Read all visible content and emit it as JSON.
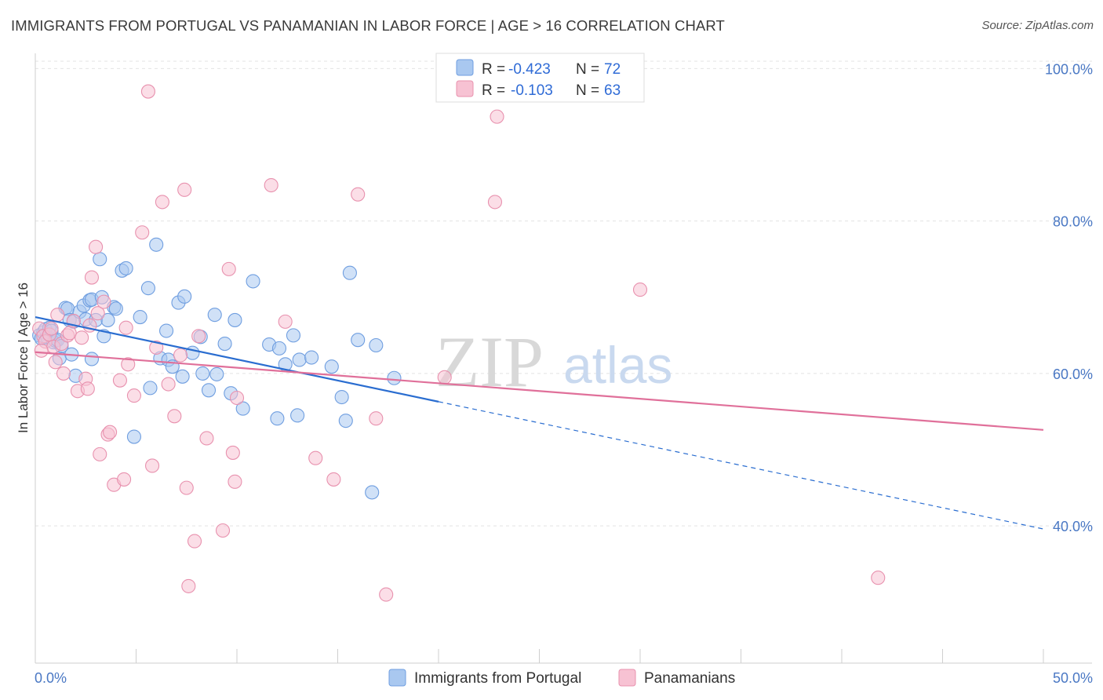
{
  "title": "IMMIGRANTS FROM PORTUGAL VS PANAMANIAN IN LABOR FORCE | AGE > 16 CORRELATION CHART",
  "source": "Source: ZipAtlas.com",
  "watermark": {
    "zip": "ZIP",
    "atlas": "atlas"
  },
  "legend_top": {
    "rows": [
      {
        "r_label": "R =",
        "r_value": "-0.423",
        "n_label": "N =",
        "n_value": "72",
        "color": "#a9c8f0",
        "stroke": "#6f9ee0"
      },
      {
        "r_label": "R =",
        "r_value": "-0.103",
        "n_label": "N =",
        "n_value": "63",
        "color": "#f7c2d3",
        "stroke": "#e891ae"
      }
    ]
  },
  "chart_data": {
    "type": "scatter",
    "title": "IMMIGRANTS FROM PORTUGAL VS PANAMANIAN IN LABOR FORCE | AGE > 16 CORRELATION CHART",
    "xlabel": "",
    "ylabel": "In Labor Force | Age > 16",
    "xlim": [
      0,
      50
    ],
    "ylim": [
      22,
      102
    ],
    "x_tick_labels": [
      "0.0%",
      "50.0%"
    ],
    "y_ticks": [
      40,
      60,
      80,
      100
    ],
    "y_tick_labels": [
      "40.0%",
      "60.0%",
      "80.0%",
      "100.0%"
    ],
    "grid": true,
    "legend_position": "bottom",
    "series": [
      {
        "name": "Immigrants from Portugal",
        "color": "#6f9ee0",
        "fill": "#a9c8f0",
        "trend": {
          "x": [
            0,
            20
          ],
          "y": [
            67.4,
            56.3
          ],
          "dashed_to": [
            50,
            39.6
          ],
          "color": "#2a6dd0"
        },
        "points": [
          [
            0.2,
            65.0
          ],
          [
            0.3,
            64.6
          ],
          [
            0.4,
            65.4
          ],
          [
            0.5,
            65.8
          ],
          [
            0.6,
            64.7
          ],
          [
            0.7,
            66.0
          ],
          [
            0.8,
            65.6
          ],
          [
            0.9,
            64.1
          ],
          [
            1.0,
            64.3
          ],
          [
            1.1,
            64.4
          ],
          [
            1.2,
            62.0
          ],
          [
            1.3,
            63.6
          ],
          [
            1.5,
            68.6
          ],
          [
            1.6,
            68.5
          ],
          [
            1.7,
            67.0
          ],
          [
            1.8,
            62.5
          ],
          [
            1.9,
            66.8
          ],
          [
            2.0,
            59.7
          ],
          [
            2.2,
            68.1
          ],
          [
            2.4,
            68.9
          ],
          [
            2.5,
            67.1
          ],
          [
            2.7,
            69.6
          ],
          [
            2.8,
            69.7
          ],
          [
            2.8,
            61.9
          ],
          [
            3.0,
            67.0
          ],
          [
            3.2,
            75.0
          ],
          [
            3.3,
            70.0
          ],
          [
            3.4,
            64.9
          ],
          [
            3.6,
            67.0
          ],
          [
            3.9,
            68.7
          ],
          [
            4.0,
            68.5
          ],
          [
            4.3,
            73.5
          ],
          [
            4.5,
            73.8
          ],
          [
            4.9,
            51.7
          ],
          [
            5.2,
            67.4
          ],
          [
            5.6,
            71.2
          ],
          [
            5.7,
            58.1
          ],
          [
            6.0,
            76.9
          ],
          [
            6.2,
            62.0
          ],
          [
            6.5,
            65.6
          ],
          [
            6.6,
            61.8
          ],
          [
            6.8,
            60.9
          ],
          [
            7.1,
            69.3
          ],
          [
            7.3,
            59.6
          ],
          [
            7.4,
            70.1
          ],
          [
            7.8,
            62.7
          ],
          [
            8.2,
            64.8
          ],
          [
            8.3,
            60.0
          ],
          [
            8.6,
            57.8
          ],
          [
            8.9,
            67.7
          ],
          [
            9.0,
            59.9
          ],
          [
            9.4,
            63.9
          ],
          [
            9.7,
            57.4
          ],
          [
            9.9,
            67.0
          ],
          [
            10.3,
            55.4
          ],
          [
            10.8,
            72.1
          ],
          [
            11.6,
            63.8
          ],
          [
            12.0,
            54.1
          ],
          [
            12.1,
            63.3
          ],
          [
            12.4,
            61.2
          ],
          [
            12.8,
            65.0
          ],
          [
            13.0,
            54.5
          ],
          [
            13.1,
            61.8
          ],
          [
            13.7,
            62.1
          ],
          [
            14.7,
            60.9
          ],
          [
            15.2,
            56.9
          ],
          [
            15.4,
            53.8
          ],
          [
            15.6,
            73.2
          ],
          [
            16.0,
            64.4
          ],
          [
            16.7,
            44.4
          ],
          [
            16.9,
            63.7
          ],
          [
            17.8,
            59.4
          ]
        ]
      },
      {
        "name": "Panamanians",
        "color": "#e891ae",
        "fill": "#f7c2d3",
        "trend": {
          "x": [
            0,
            50
          ],
          "y": [
            62.8,
            52.6
          ],
          "color": "#e0709a"
        },
        "points": [
          [
            0.2,
            65.9
          ],
          [
            0.4,
            64.9
          ],
          [
            0.5,
            64.2
          ],
          [
            0.7,
            65.1
          ],
          [
            0.8,
            65.9
          ],
          [
            0.9,
            63.5
          ],
          [
            1.1,
            67.7
          ],
          [
            1.3,
            63.9
          ],
          [
            1.4,
            60.0
          ],
          [
            1.6,
            65.0
          ],
          [
            1.7,
            65.3
          ],
          [
            1.9,
            66.9
          ],
          [
            2.1,
            57.7
          ],
          [
            2.3,
            64.7
          ],
          [
            2.5,
            59.3
          ],
          [
            2.7,
            66.3
          ],
          [
            2.8,
            72.6
          ],
          [
            3.0,
            76.6
          ],
          [
            3.1,
            67.9
          ],
          [
            3.2,
            49.4
          ],
          [
            3.4,
            69.4
          ],
          [
            3.6,
            52.0
          ],
          [
            3.7,
            52.3
          ],
          [
            3.9,
            45.4
          ],
          [
            4.2,
            59.1
          ],
          [
            4.4,
            46.1
          ],
          [
            4.5,
            66.0
          ],
          [
            4.6,
            61.2
          ],
          [
            4.9,
            57.1
          ],
          [
            5.3,
            78.5
          ],
          [
            5.6,
            97.0
          ],
          [
            5.8,
            47.9
          ],
          [
            6.0,
            63.4
          ],
          [
            6.3,
            82.5
          ],
          [
            6.6,
            58.6
          ],
          [
            6.9,
            54.4
          ],
          [
            7.2,
            62.4
          ],
          [
            7.4,
            84.1
          ],
          [
            7.5,
            45.0
          ],
          [
            7.6,
            32.1
          ],
          [
            7.9,
            38.0
          ],
          [
            8.1,
            64.9
          ],
          [
            8.5,
            51.5
          ],
          [
            9.3,
            39.4
          ],
          [
            9.6,
            73.7
          ],
          [
            9.8,
            49.6
          ],
          [
            9.9,
            45.8
          ],
          [
            10.0,
            56.8
          ],
          [
            11.7,
            84.7
          ],
          [
            12.4,
            66.8
          ],
          [
            13.9,
            48.9
          ],
          [
            14.8,
            46.1
          ],
          [
            16.0,
            83.5
          ],
          [
            16.9,
            54.1
          ],
          [
            17.4,
            31.0
          ],
          [
            20.3,
            59.5
          ],
          [
            22.8,
            82.5
          ],
          [
            22.9,
            93.7
          ],
          [
            30.0,
            71.0
          ],
          [
            41.8,
            33.2
          ],
          [
            0.3,
            63.0
          ],
          [
            1.0,
            61.5
          ],
          [
            2.6,
            58.0
          ]
        ]
      }
    ]
  }
}
